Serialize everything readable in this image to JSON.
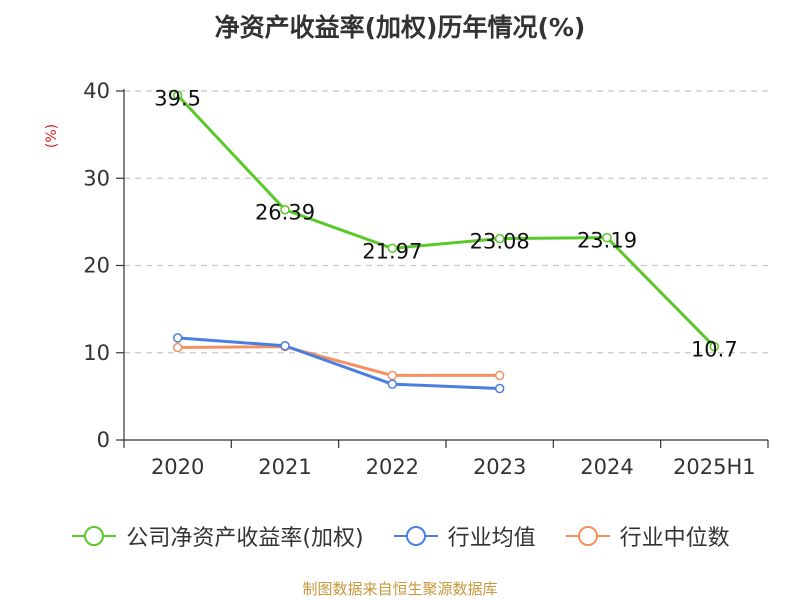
{
  "chart_data": {
    "type": "line",
    "title": "净资产收益率(加权)历年情况(%)",
    "ylabel": "(%)",
    "categories": [
      "2020",
      "2021",
      "2022",
      "2023",
      "2024",
      "2025H1"
    ],
    "ylim": [
      0,
      40
    ],
    "yticks": [
      0,
      10,
      20,
      30,
      40
    ],
    "grid": true,
    "legend_position": "bottom",
    "series": [
      {
        "name": "公司净资产收益率(加权)",
        "color": "#5ac828",
        "values": [
          39.5,
          26.39,
          21.97,
          23.08,
          23.19,
          10.7
        ],
        "labels": [
          "39.5",
          "26.39",
          "21.97",
          "23.08",
          "23.19",
          "10.7"
        ]
      },
      {
        "name": "行业均值",
        "color": "#4a7fe0",
        "values": [
          11.7,
          10.8,
          6.4,
          5.9,
          null,
          null
        ]
      },
      {
        "name": "行业中位数",
        "color": "#f59060",
        "values": [
          10.6,
          10.7,
          7.4,
          7.4,
          null,
          null
        ]
      }
    ],
    "source": "制图数据来自恒生聚源数据库"
  }
}
